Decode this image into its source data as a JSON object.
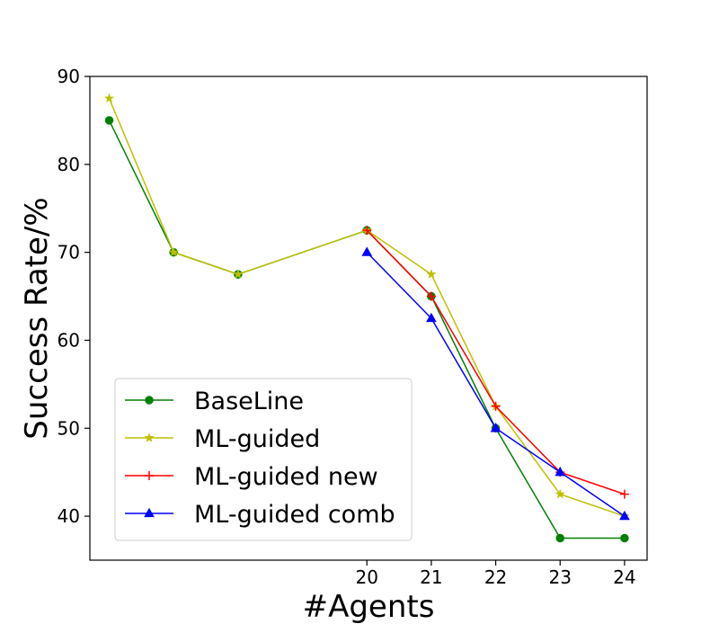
{
  "chart_data": {
    "type": "line",
    "title": "",
    "xlabel": "#Agents",
    "ylabel": "Success Rate/%",
    "x_positions": [
      16,
      17,
      18,
      20,
      21,
      22,
      23,
      24
    ],
    "x_ticks": [
      20,
      21,
      22,
      23,
      24
    ],
    "x_tick_labels": [
      "20",
      "21",
      "22",
      "23",
      "24"
    ],
    "xlim": [
      15.7,
      24.35
    ],
    "y_ticks": [
      40,
      50,
      60,
      70,
      80,
      90
    ],
    "y_tick_labels": [
      "40",
      "50",
      "60",
      "70",
      "80",
      "90"
    ],
    "ylim": [
      35,
      90
    ],
    "grid": false,
    "legend_position": "lower-left",
    "series": [
      {
        "name": "BaseLine",
        "color": "#008000",
        "marker": "circle",
        "x": [
          16,
          17,
          18,
          20,
          21,
          22,
          23,
          24
        ],
        "values": [
          85,
          70,
          67.5,
          72.5,
          65,
          50,
          37.5,
          37.5
        ]
      },
      {
        "name": "ML-guided",
        "color": "#bfbf00",
        "marker": "star",
        "x": [
          16,
          17,
          18,
          20,
          21,
          22,
          23,
          24
        ],
        "values": [
          87.5,
          70,
          67.5,
          72.5,
          67.5,
          52.5,
          42.5,
          40
        ]
      },
      {
        "name": "ML-guided new",
        "color": "#ff0000",
        "marker": "plus",
        "x": [
          20,
          21,
          22,
          23,
          24
        ],
        "values": [
          72.5,
          65,
          52.5,
          45,
          42.5
        ]
      },
      {
        "name": "ML-guided comb",
        "color": "#0000ff",
        "marker": "triangle",
        "x": [
          20,
          21,
          22,
          23,
          24
        ],
        "values": [
          70,
          62.5,
          50,
          45,
          40
        ]
      }
    ]
  }
}
